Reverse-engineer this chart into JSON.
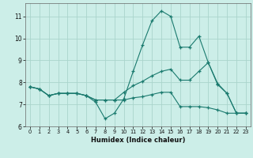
{
  "xlabel": "Humidex (Indice chaleur)",
  "background_color": "#cceee8",
  "grid_color": "#aad4cc",
  "line_color": "#1a7a6e",
  "xlim": [
    -0.5,
    23.5
  ],
  "ylim": [
    6.0,
    11.6
  ],
  "yticks": [
    6,
    7,
    8,
    9,
    10,
    11
  ],
  "xticks": [
    0,
    1,
    2,
    3,
    4,
    5,
    6,
    7,
    8,
    9,
    10,
    11,
    12,
    13,
    14,
    15,
    16,
    17,
    18,
    19,
    20,
    21,
    22,
    23
  ],
  "line1_x": [
    0,
    1,
    2,
    3,
    4,
    5,
    6,
    7,
    8,
    9,
    10,
    11,
    12,
    13,
    14,
    15,
    16,
    17,
    18,
    19,
    20,
    21,
    22,
    23
  ],
  "line1_y": [
    7.8,
    7.7,
    7.4,
    7.5,
    7.5,
    7.5,
    7.4,
    7.1,
    6.35,
    6.6,
    7.25,
    8.5,
    9.7,
    10.8,
    11.25,
    11.0,
    9.6,
    9.6,
    10.1,
    8.9,
    7.9,
    7.5,
    6.6,
    6.6
  ],
  "line2_x": [
    0,
    1,
    2,
    3,
    4,
    5,
    6,
    7,
    8,
    9,
    10,
    11,
    12,
    13,
    14,
    15,
    16,
    17,
    18,
    19,
    20,
    21,
    22,
    23
  ],
  "line2_y": [
    7.8,
    7.7,
    7.4,
    7.5,
    7.5,
    7.5,
    7.4,
    7.2,
    7.2,
    7.2,
    7.2,
    7.3,
    7.35,
    7.45,
    7.55,
    7.55,
    6.9,
    6.9,
    6.9,
    6.85,
    6.75,
    6.6,
    6.6,
    6.6
  ],
  "line3_x": [
    0,
    1,
    2,
    3,
    4,
    5,
    6,
    7,
    8,
    9,
    10,
    11,
    12,
    13,
    14,
    15,
    16,
    17,
    18,
    19,
    20,
    21,
    22,
    23
  ],
  "line3_y": [
    7.8,
    7.7,
    7.4,
    7.5,
    7.5,
    7.5,
    7.4,
    7.2,
    7.2,
    7.2,
    7.55,
    7.85,
    8.05,
    8.3,
    8.5,
    8.6,
    8.1,
    8.1,
    8.5,
    8.9,
    7.95,
    7.5,
    6.6,
    6.6
  ]
}
